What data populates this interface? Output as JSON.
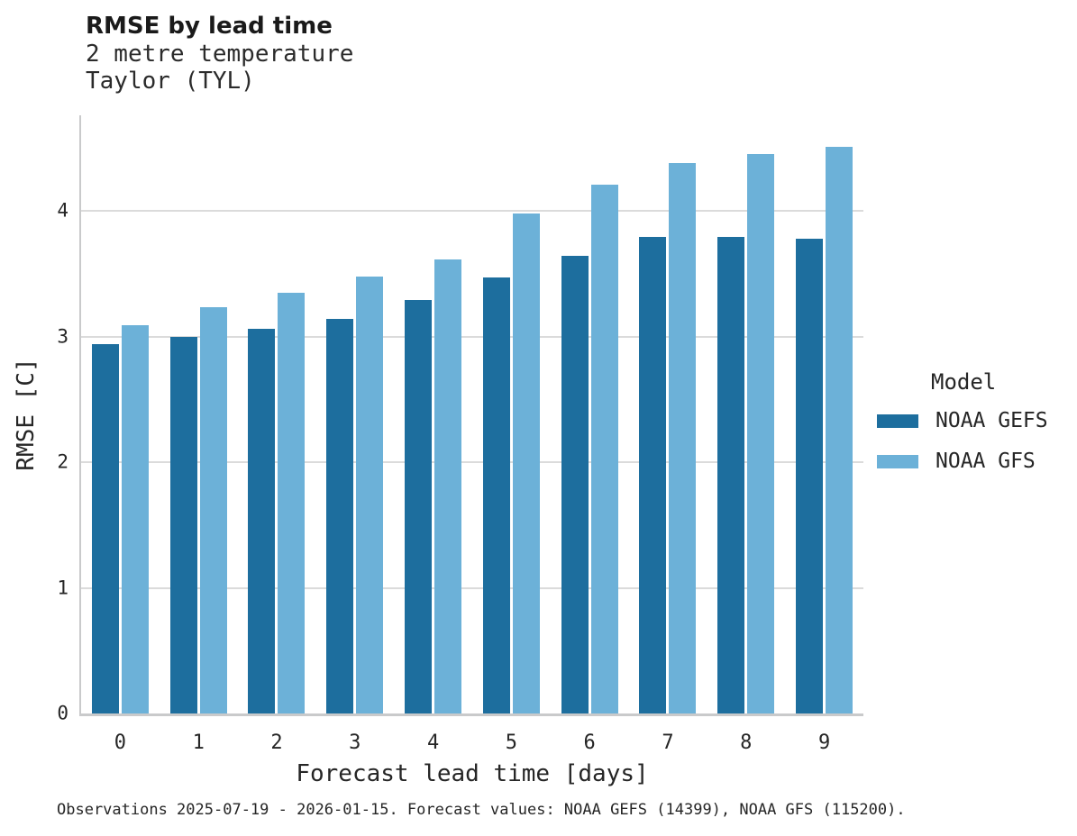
{
  "header": {
    "title": "RMSE by lead time",
    "subtitle_line1": "2 metre temperature",
    "subtitle_line2": "Taylor (TYL)"
  },
  "chart_data": {
    "type": "bar",
    "title": "RMSE by lead time",
    "subtitle": [
      "2 metre temperature",
      "Taylor (TYL)"
    ],
    "categories": [
      "0",
      "1",
      "2",
      "3",
      "4",
      "5",
      "6",
      "7",
      "8",
      "9"
    ],
    "series": [
      {
        "name": "NOAA GEFS",
        "color": "#1d6e9e",
        "values": [
          2.94,
          3.0,
          3.06,
          3.14,
          3.29,
          3.47,
          3.64,
          3.79,
          3.79,
          3.78
        ]
      },
      {
        "name": "NOAA GFS",
        "color": "#6cb1d8",
        "values": [
          3.09,
          3.23,
          3.35,
          3.48,
          3.61,
          3.98,
          4.21,
          4.38,
          4.45,
          4.51
        ]
      }
    ],
    "xlabel": "Forecast lead time [days]",
    "ylabel": "RMSE [C]",
    "ylim": [
      0,
      4.76
    ],
    "yticks": [
      0,
      1,
      2,
      3,
      4
    ],
    "grid": true,
    "legend": {
      "title": "Model",
      "position": "right"
    }
  },
  "footer": {
    "note": "Observations 2025-07-19 - 2026-01-15. Forecast values: NOAA GEFS (14399), NOAA GFS (115200)."
  },
  "colors": {
    "gefs": "#1d6e9e",
    "gfs": "#6cb1d8",
    "gridline": "#dbdbdb",
    "spine": "#c9cacb",
    "text": "#262626"
  }
}
